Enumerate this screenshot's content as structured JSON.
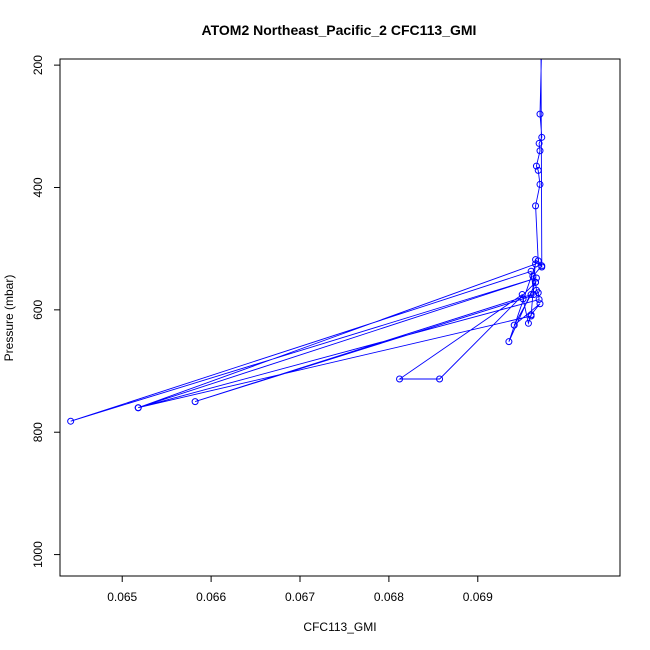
{
  "chart_data": {
    "type": "line",
    "title": "ATOM2 Northeast_Pacific_2 CFC113_GMI",
    "xlabel": "CFC113_GMI",
    "ylabel": "Pressure (mbar)",
    "xlim": [
      0.0643,
      0.0706
    ],
    "ylim": [
      1035,
      190
    ],
    "y_reversed": true,
    "grid": false,
    "legend": "none",
    "colors": {
      "series": "#0000ff",
      "axis": "#000000",
      "background": "#ffffff"
    },
    "x_ticks": [
      {
        "value": 0.065,
        "label": "0.065"
      },
      {
        "value": 0.066,
        "label": "0.066"
      },
      {
        "value": 0.067,
        "label": "0.067"
      },
      {
        "value": 0.068,
        "label": "0.068"
      },
      {
        "value": 0.069,
        "label": "0.069"
      }
    ],
    "y_ticks": [
      {
        "value": 200,
        "label": "200"
      },
      {
        "value": 400,
        "label": "400"
      },
      {
        "value": 600,
        "label": "600"
      },
      {
        "value": 800,
        "label": "800"
      },
      {
        "value": 1000,
        "label": "1000"
      }
    ],
    "series": [
      {
        "points": [
          [
            0.06972,
            160
          ],
          [
            0.0697,
            280
          ],
          [
            0.06972,
            318
          ],
          [
            0.06969,
            328
          ],
          [
            0.0697,
            340
          ],
          [
            0.06966,
            365
          ],
          [
            0.06968,
            372
          ],
          [
            0.0697,
            395
          ],
          [
            0.06965,
            430
          ],
          [
            0.06968,
            520
          ],
          [
            0.06972,
            528
          ],
          [
            0.06962,
            545
          ],
          [
            0.06965,
            555
          ],
          [
            0.06966,
            568
          ],
          [
            0.06968,
            572
          ],
          [
            0.06969,
            583
          ],
          [
            0.06518,
            760
          ],
          [
            0.06966,
            548
          ],
          [
            0.06442,
            782
          ],
          [
            0.0696,
            537
          ],
          [
            0.06963,
            575
          ],
          [
            0.06951,
            582
          ],
          [
            0.06582,
            750
          ],
          [
            0.0696,
            575
          ],
          [
            0.06941,
            625
          ],
          [
            0.0697,
            590
          ],
          [
            0.0696,
            608
          ],
          [
            0.06957,
            622
          ],
          [
            0.0695,
            575
          ],
          [
            0.06812,
            713
          ],
          [
            0.06857,
            713
          ],
          [
            0.06965,
            555
          ],
          [
            0.06935,
            652
          ],
          [
            0.06965,
            525
          ],
          [
            0.06518,
            760
          ],
          [
            0.0696,
            610
          ],
          [
            0.06965,
            518
          ],
          [
            0.06972,
            530
          ],
          [
            0.06971,
            140
          ]
        ]
      }
    ]
  }
}
